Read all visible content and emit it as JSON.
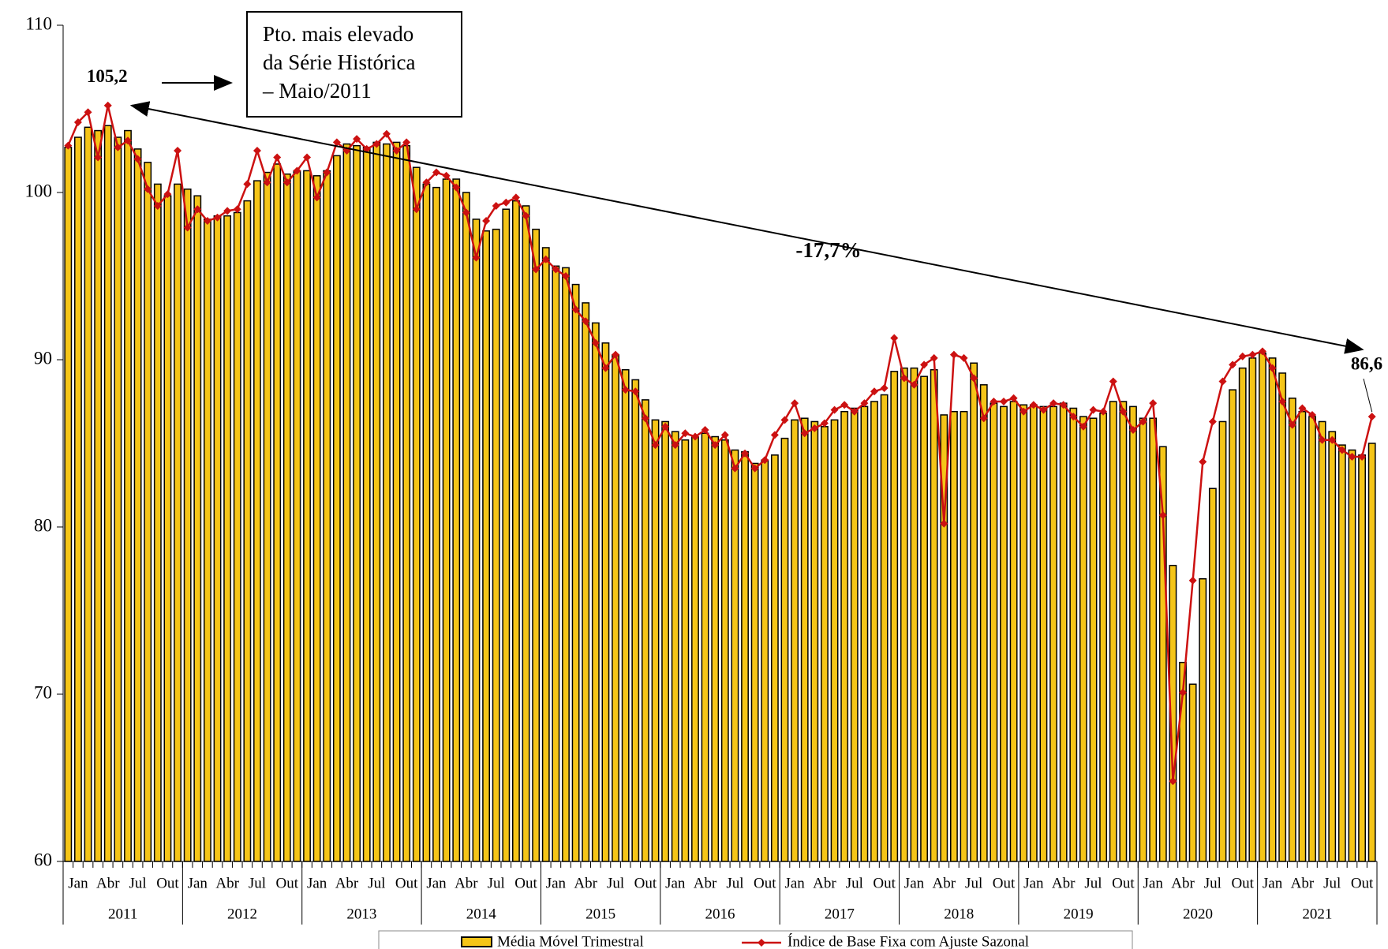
{
  "chart_data": {
    "type": "bar_line",
    "categories": [
      "Jan",
      null,
      null,
      "Abr",
      null,
      null,
      "Jul",
      null,
      null,
      "Out",
      null,
      null,
      "Jan",
      null,
      null,
      "Abr",
      null,
      null,
      "Jul",
      null,
      null,
      "Out",
      null,
      null,
      "Jan",
      null,
      null,
      "Abr",
      null,
      null,
      "Jul",
      null,
      null,
      "Out",
      null,
      null,
      "Jan",
      null,
      null,
      "Abr",
      null,
      null,
      "Jul",
      null,
      null,
      "Out",
      null,
      null,
      "Jan",
      null,
      null,
      "Abr",
      null,
      null,
      "Jul",
      null,
      null,
      "Out",
      null,
      null,
      "Jan",
      null,
      null,
      "Abr",
      null,
      null,
      "Jul",
      null,
      null,
      "Out",
      null,
      null,
      "Jan",
      null,
      null,
      "Abr",
      null,
      null,
      "Jul",
      null,
      null,
      "Out",
      null,
      null,
      "Jan",
      null,
      null,
      "Abr",
      null,
      null,
      "Jul",
      null,
      null,
      "Out",
      null,
      null,
      "Jan",
      null,
      null,
      "Abr",
      null,
      null,
      "Jul",
      null,
      null,
      "Out",
      null,
      null,
      "Jan",
      null,
      null,
      "Abr",
      null,
      null,
      "Jul",
      null,
      null,
      "Out",
      null,
      null,
      "Jan",
      null,
      null,
      "Abr",
      null,
      null,
      "Jul",
      null,
      null,
      "Out",
      null,
      null
    ],
    "years": [
      "2011",
      "2012",
      "2013",
      "2014",
      "2015",
      "2016",
      "2017",
      "2018",
      "2019",
      "2020",
      "2021"
    ],
    "series": [
      {
        "name": "Média Móvel Trimestral",
        "color": "#f5c518",
        "kind": "bar",
        "values": [
          102.7,
          103.3,
          103.9,
          103.7,
          104.0,
          103.3,
          103.7,
          102.6,
          101.8,
          100.5,
          99.8,
          100.5,
          100.2,
          99.8,
          98.4,
          98.6,
          98.6,
          98.8,
          99.5,
          100.7,
          101.2,
          101.7,
          101.1,
          101.3,
          101.3,
          101.0,
          101.3,
          102.2,
          102.9,
          102.8,
          102.7,
          103.0,
          102.9,
          103.0,
          102.8,
          101.5,
          100.5,
          100.3,
          100.8,
          100.8,
          100.0,
          98.4,
          97.7,
          97.8,
          99.0,
          99.5,
          99.2,
          97.8,
          96.7,
          95.6,
          95.5,
          94.5,
          93.4,
          92.2,
          91.0,
          90.3,
          89.4,
          88.8,
          87.6,
          86.4,
          86.3,
          85.7,
          85.2,
          85.4,
          85.6,
          85.4,
          85.2,
          84.6,
          84.5,
          83.8,
          84.0,
          84.3,
          85.3,
          86.4,
          86.5,
          86.3,
          86.0,
          86.4,
          86.9,
          87.1,
          87.2,
          87.5,
          87.9,
          89.3,
          89.5,
          89.5,
          89.0,
          89.4,
          86.7,
          86.9,
          86.9,
          89.8,
          88.5,
          87.4,
          87.2,
          87.5,
          87.3,
          87.3,
          87.2,
          87.2,
          87.4,
          87.1,
          86.6,
          86.5,
          86.8,
          87.5,
          87.5,
          87.2,
          86.5,
          86.5,
          84.8,
          77.7,
          71.9,
          70.6,
          76.9,
          82.3,
          86.3,
          88.2,
          89.5,
          90.1,
          90.4,
          90.1,
          89.2,
          87.7,
          86.9,
          86.6,
          86.3,
          85.7,
          84.9,
          84.6,
          84.3,
          85.0
        ]
      },
      {
        "name": "Índice de Base Fixa com Ajuste Sazonal",
        "color": "#cc1111",
        "kind": "line",
        "values": [
          102.8,
          104.2,
          104.8,
          102.1,
          105.2,
          102.7,
          103.1,
          102.0,
          100.2,
          99.2,
          99.9,
          102.5,
          97.9,
          99.0,
          98.3,
          98.5,
          98.9,
          99.0,
          100.5,
          102.5,
          100.6,
          102.1,
          100.6,
          101.3,
          102.1,
          99.7,
          101.2,
          103.0,
          102.5,
          103.2,
          102.6,
          102.9,
          103.5,
          102.5,
          103.0,
          99.0,
          100.6,
          101.2,
          101.0,
          100.3,
          98.8,
          96.1,
          98.3,
          99.2,
          99.4,
          99.7,
          98.6,
          95.4,
          96.0,
          95.4,
          95.0,
          93.0,
          92.3,
          91.0,
          89.5,
          90.3,
          88.2,
          88.1,
          86.5,
          84.9,
          86.0,
          84.9,
          85.6,
          85.4,
          85.8,
          84.9,
          85.5,
          83.5,
          84.4,
          83.5,
          84.0,
          85.5,
          86.4,
          87.4,
          85.6,
          85.9,
          86.2,
          87.0,
          87.3,
          86.9,
          87.4,
          88.1,
          88.3,
          91.3,
          88.9,
          88.5,
          89.7,
          90.1,
          80.2,
          90.3,
          90.1,
          88.9,
          86.5,
          87.5,
          87.5,
          87.7,
          86.9,
          87.3,
          87.0,
          87.4,
          87.3,
          86.6,
          86.0,
          87.0,
          86.9,
          88.7,
          86.9,
          85.8,
          86.3,
          87.4,
          80.7,
          64.8,
          70.1,
          76.8,
          83.9,
          86.3,
          88.7,
          89.7,
          90.2,
          90.3,
          90.5,
          89.5,
          87.5,
          86.1,
          87.1,
          86.7,
          85.2,
          85.2,
          84.6,
          84.2,
          84.2,
          86.6
        ]
      }
    ],
    "ylim": [
      60,
      110
    ],
    "yticks": [
      60,
      70,
      80,
      90,
      100,
      110
    ],
    "annotations": {
      "peak_label": "105,2",
      "change_label": "-17,7%",
      "last_label": "86,6",
      "box_text": [
        "Pto. mais elevado",
        "da Série Histórica",
        "– Maio/2011"
      ]
    }
  }
}
